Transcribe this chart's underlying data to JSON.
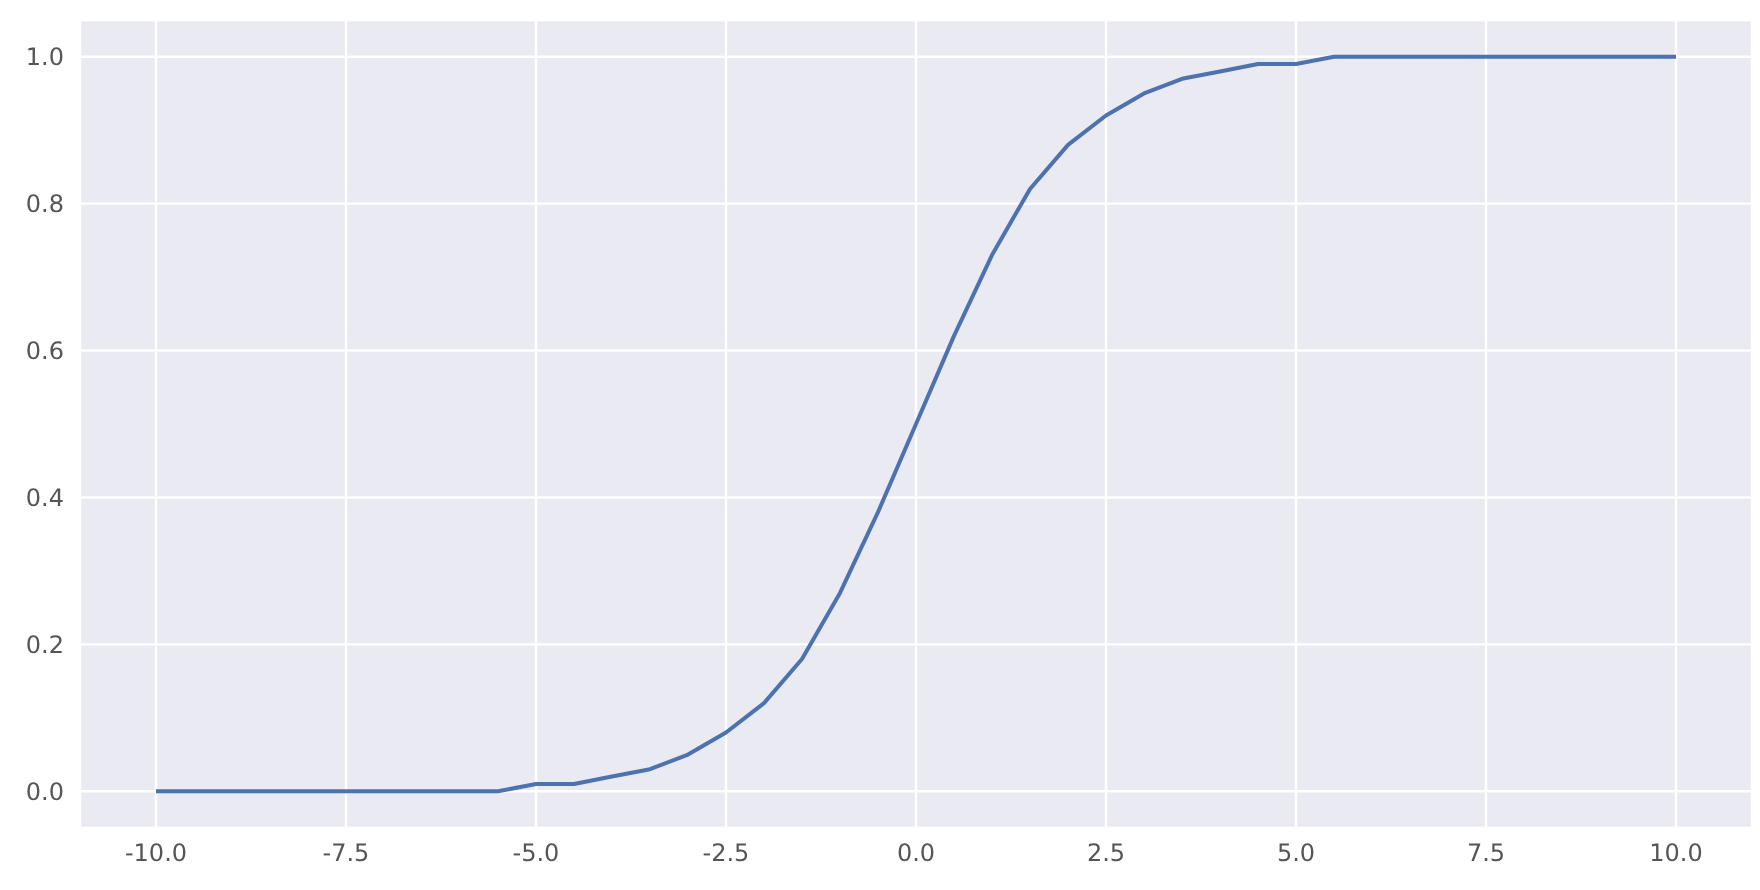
{
  "chart_data": {
    "type": "line",
    "x": [
      -10,
      -9.5,
      -9,
      -8.5,
      -8,
      -7.5,
      -7,
      -6.5,
      -6,
      -5.5,
      -5,
      -4.5,
      -4,
      -3.5,
      -3,
      -2.5,
      -2,
      -1.5,
      -1,
      -0.5,
      0,
      0.5,
      1,
      1.5,
      2,
      2.5,
      3,
      3.5,
      4,
      4.5,
      5,
      5.5,
      6,
      6.5,
      7,
      7.5,
      8,
      8.5,
      9,
      9.5,
      10
    ],
    "series": [
      {
        "color": "#4c72b0",
        "values": [
          0,
          0,
          0,
          0,
          0,
          0,
          0,
          0,
          0,
          0,
          0.01,
          0.01,
          0.02,
          0.03,
          0.05,
          0.08,
          0.12,
          0.18,
          0.27,
          0.38,
          0.5,
          0.62,
          0.73,
          0.82,
          0.88,
          0.92,
          0.95,
          0.97,
          0.98,
          0.99,
          0.99,
          1,
          1,
          1,
          1,
          1,
          1,
          1,
          1,
          1,
          1
        ]
      }
    ],
    "xlim": [
      -11,
      11
    ],
    "ylim": [
      -0.05,
      1.05
    ],
    "xticks": [
      {
        "value": -10,
        "label": "-10.0"
      },
      {
        "value": -7.5,
        "label": "-7.5"
      },
      {
        "value": -5,
        "label": "-5.0"
      },
      {
        "value": -2.5,
        "label": "-2.5"
      },
      {
        "value": 0,
        "label": "0.0"
      },
      {
        "value": 2.5,
        "label": "2.5"
      },
      {
        "value": 5,
        "label": "5.0"
      },
      {
        "value": 7.5,
        "label": "7.5"
      },
      {
        "value": 10,
        "label": "10.0"
      }
    ],
    "yticks": [
      {
        "value": 0,
        "label": "0.0"
      },
      {
        "value": 0.2,
        "label": "0.2"
      },
      {
        "value": 0.4,
        "label": "0.4"
      },
      {
        "value": 0.6,
        "label": "0.6"
      },
      {
        "value": 0.8,
        "label": "0.8"
      },
      {
        "value": 1,
        "label": "1.0"
      }
    ],
    "grid": true,
    "marker": "none",
    "line_style": "solid"
  }
}
